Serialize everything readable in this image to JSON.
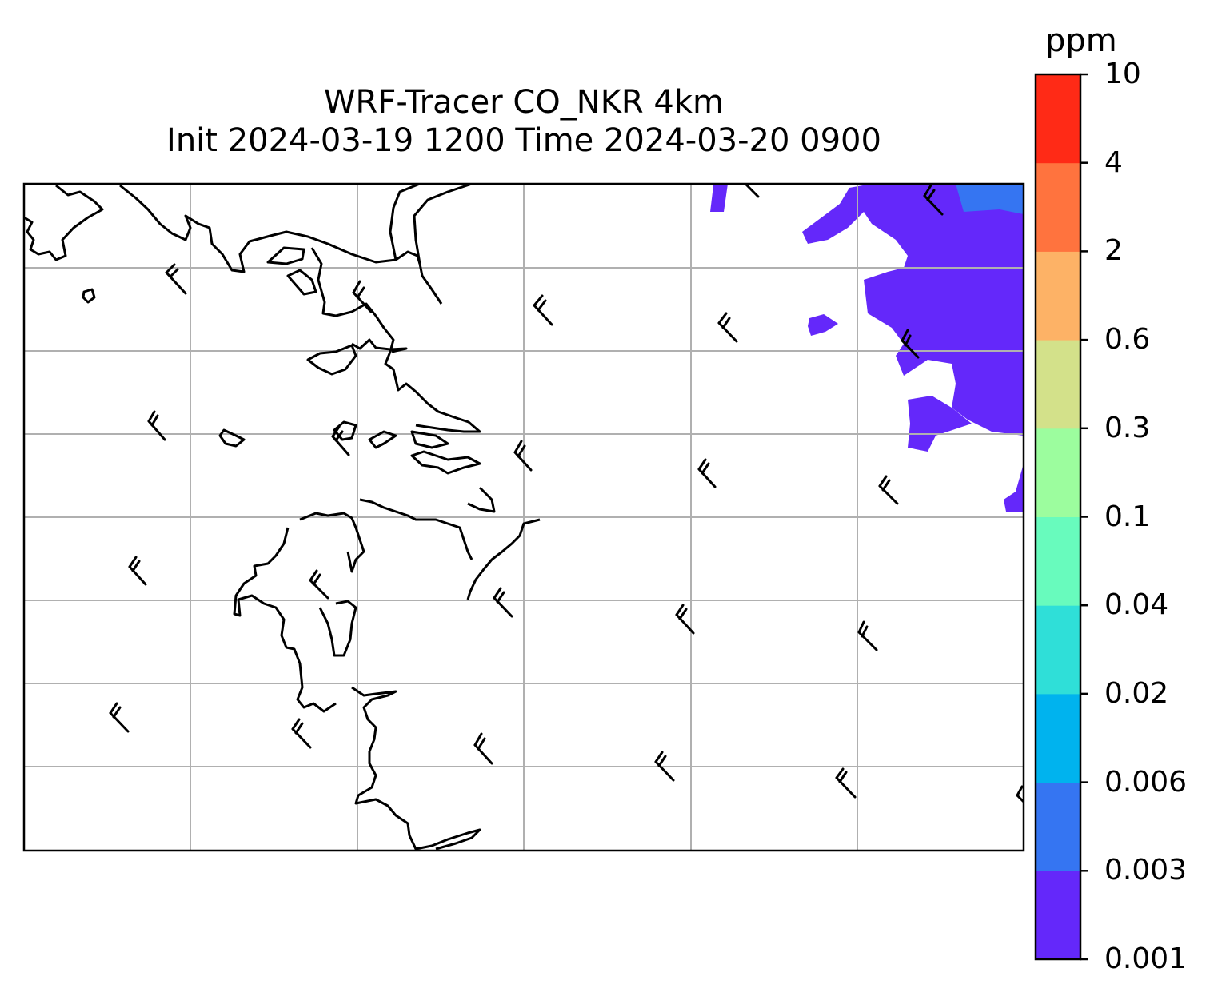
{
  "title": {
    "line1": "WRF-Tracer CO_NKR 4km",
    "line2": "Init 2024-03-19 1200 Time 2024-03-20 0900"
  },
  "colorbar": {
    "unit": "ppm",
    "levels": [
      "0.001",
      "0.003",
      "0.006",
      "0.02",
      "0.04",
      "0.1",
      "0.3",
      "0.6",
      "2",
      "4",
      "10"
    ],
    "colors": [
      "#6428fa",
      "#3575f2",
      "#00b3ee",
      "#2fdfd8",
      "#68fbbd",
      "#9cfd9e",
      "#d3e18a",
      "#fdb266",
      "#ff733e",
      "#ff2a16"
    ]
  },
  "map": {
    "coastline_color": "#000000",
    "gridline_color": "#b0b0b0",
    "tracer_field_colors": [
      "#6428fa",
      "#3575f2"
    ],
    "wind_barb_direction": "northwest",
    "wind_barb_count": 27
  }
}
